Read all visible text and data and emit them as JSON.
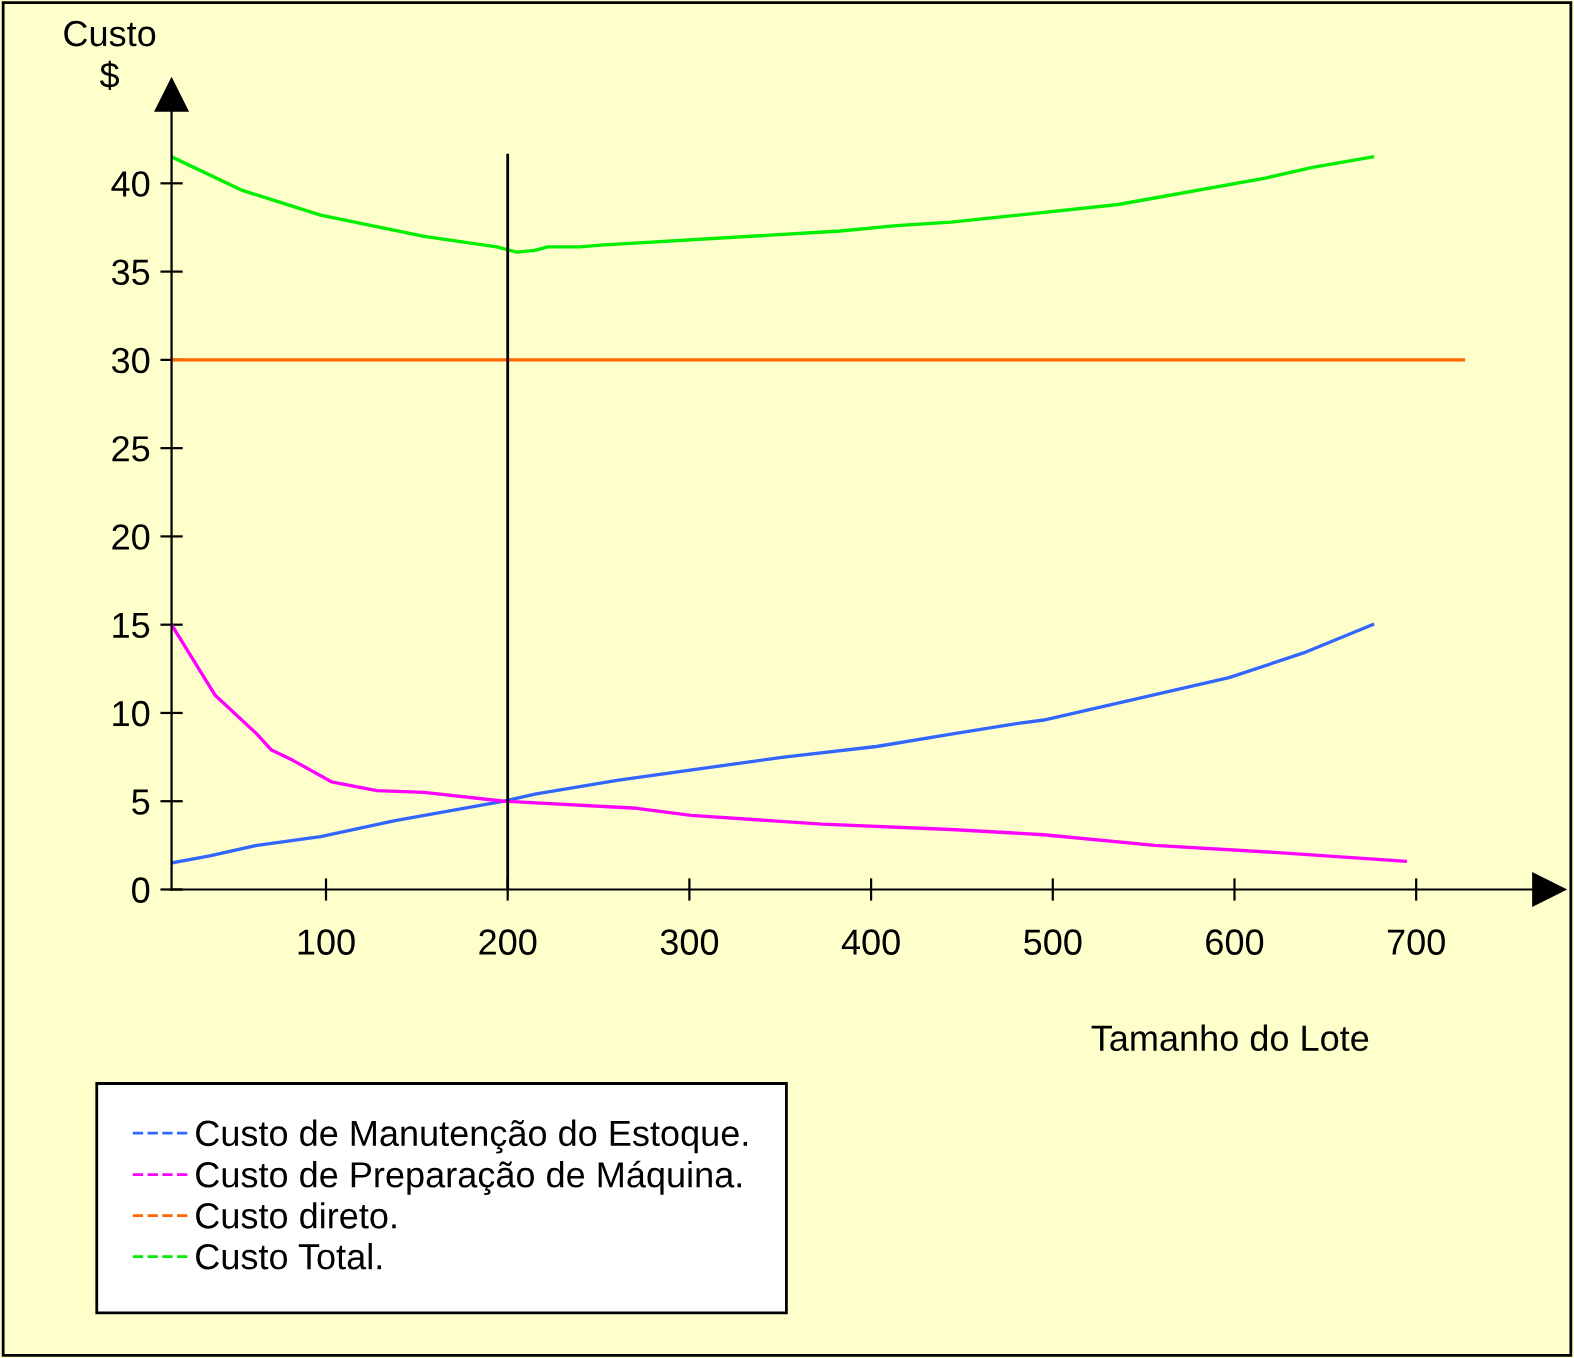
{
  "chart_data": {
    "type": "line",
    "ylabel": "Custo\n$",
    "xlabel": "Tamanho do Lote",
    "xlim": [
      15,
      773
    ],
    "ylim": [
      0,
      45
    ],
    "xticks": [
      100,
      200,
      300,
      400,
      500,
      600,
      700
    ],
    "yticks": [
      0,
      5,
      10,
      15,
      20,
      25,
      30,
      35,
      40
    ],
    "grid": false,
    "legend": "bottom left",
    "marker": "none",
    "line_style": "solid",
    "series": [
      {
        "name": "Custo de Manutenção do Estoque.",
        "color": "#3366ff",
        "x": [
          15,
          36,
          62,
          97,
          138,
          198,
          215,
          261,
          352,
          403,
          444,
          480,
          495,
          546,
          597,
          638,
          676
        ],
        "values": [
          1.5,
          1.9,
          2.5,
          3.0,
          3.9,
          5.0,
          5.4,
          6.2,
          7.5,
          8.1,
          8.8,
          9.4,
          9.6,
          10.8,
          12.0,
          13.4,
          15.0
        ]
      },
      {
        "name": "Custo de Preparação de Máquina.",
        "color": "#ff00ff",
        "x": [
          15,
          39,
          62,
          70,
          82,
          103,
          128,
          154,
          198,
          271,
          301,
          373,
          444,
          495,
          556,
          622,
          694
        ],
        "values": [
          15.0,
          11.0,
          8.8,
          7.9,
          7.3,
          6.1,
          5.6,
          5.5,
          5.0,
          4.6,
          4.2,
          3.7,
          3.4,
          3.1,
          2.5,
          2.1,
          1.6
        ]
      },
      {
        "name": "Custo direto.",
        "color": "#ff6600",
        "x": [
          15,
          726
        ],
        "values": [
          30,
          30
        ]
      },
      {
        "name": "Custo Total.",
        "color": "#00ee00",
        "x": [
          15,
          54,
          97,
          154,
          194,
          205,
          215,
          222,
          240,
          251,
          383,
          414,
          444,
          536,
          617,
          643,
          676
        ],
        "values": [
          41.5,
          39.6,
          38.2,
          37.0,
          36.4,
          36.1,
          36.2,
          36.4,
          36.4,
          36.5,
          37.3,
          37.6,
          37.8,
          38.8,
          40.3,
          40.9,
          41.5
        ]
      }
    ],
    "ref_lines": [
      {
        "axis": "x",
        "value": 200,
        "color": "#000000"
      }
    ]
  }
}
